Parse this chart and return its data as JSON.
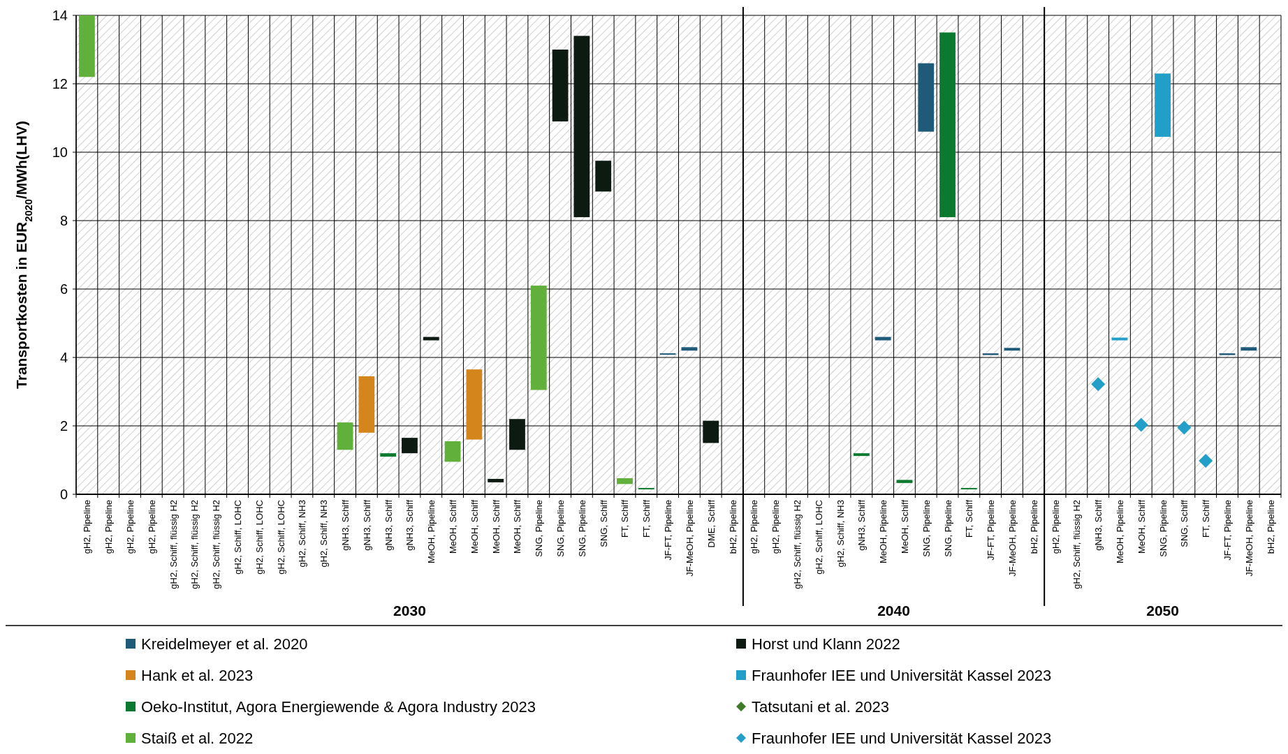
{
  "chart_data": {
    "type": "bar",
    "ylabel": "Transportkosten  in EUR$_{2020}$/MWh(LHV)",
    "categories": [
      "gH2, Pipeline",
      "gH2, Pipeline",
      "gH2, Pipeline",
      "gH2, Pipeline",
      "gH2, Schiff, flüssig H2",
      "gH2, Schiff, flüssig H2",
      "gH2, Schiff, flüssig H2",
      "gH2, Schiff, LOHC",
      "gH2, Schiff, LOHC",
      "gH2, Schiff, LOHC",
      "gH2, Schiff, NH3",
      "gH2, Schiff, NH3",
      "gNH3, Schiff",
      "gNH3, Schiff",
      "gNH3, Schiff",
      "gNH3, Schiff",
      "MeOH, Pipeline",
      "MeOH, Schiff",
      "MeOH, Schiff",
      "MeOH, Schiff",
      "MeOH, Schiff",
      "SNG, Pipeline",
      "SNG, Pipeline",
      "SNG, Pipeline",
      "SNG, Schiff",
      "FT, Schiff",
      "FT, Schiff",
      "JF-FT, Pipeline",
      "JF-MeOH, Pipeline",
      "DME, Schiff",
      "bH2, Pipeline",
      "gH2, Pipeline",
      "gH2, Pipeline",
      "gH2, Schiff, flüssig H2",
      "gH2, Schiff, LOHC",
      "gH2, Schiff, NH3",
      "gNH3, Schiff",
      "MeOH, Pipeline",
      "MeOH, Schiff",
      "SNG, Pipeline",
      "SNG, Pipeline",
      "FT, Schiff",
      "JF-FT, Pipeline",
      "JF-MeOH, Pipeline",
      "bH2, Pipeline",
      "gH2, Pipeline",
      "gH2, Schiff, flüssig H2",
      "gNH3, Schiff",
      "MeOH, Pipeline",
      "MeOH, Schiff",
      "SNG, Pipeline",
      "SNG, Schiff",
      "FT, Schiff",
      "JF-FT, Pipeline",
      "JF-MeOH, Pipeline",
      "bH2, Pipeline"
    ],
    "series": [
      {
        "name": "Kreidelmeyer et al. 2020",
        "color": "#1f5a78",
        "values": [
          null,
          null,
          null,
          null,
          null,
          null,
          null,
          null,
          null,
          null,
          null,
          null,
          null,
          null,
          null,
          null,
          null,
          null,
          null,
          null,
          null,
          null,
          null,
          null,
          null,
          null,
          null,
          0.04,
          0.1,
          null,
          null,
          null,
          null,
          null,
          null,
          null,
          null,
          0.1,
          null,
          2.0,
          null,
          null,
          0.05,
          0.08,
          null,
          null,
          null,
          null,
          null,
          null,
          null,
          null,
          null,
          0.05,
          0.1,
          null
        ],
        "base": [
          null,
          null,
          null,
          null,
          null,
          null,
          null,
          null,
          null,
          null,
          null,
          null,
          null,
          null,
          null,
          null,
          null,
          null,
          null,
          null,
          null,
          null,
          null,
          null,
          null,
          null,
          null,
          4.08,
          4.2,
          null,
          null,
          null,
          null,
          null,
          null,
          null,
          null,
          4.5,
          null,
          10.6,
          null,
          null,
          4.07,
          4.2,
          null,
          null,
          null,
          null,
          null,
          null,
          null,
          null,
          null,
          4.07,
          4.2,
          null
        ]
      },
      {
        "name": "Hank et al. 2023",
        "color": "#d4861c",
        "values": [
          null,
          null,
          null,
          null,
          null,
          null,
          null,
          null,
          null,
          null,
          null,
          null,
          null,
          1.65,
          null,
          null,
          null,
          null,
          2.05,
          null,
          null,
          null,
          null,
          null,
          null,
          null,
          null,
          null,
          null,
          null,
          null,
          null,
          null,
          null,
          null,
          null,
          null,
          null,
          null,
          null,
          null,
          null,
          null,
          null,
          null,
          null,
          null,
          null,
          null,
          null,
          null,
          null,
          null,
          null,
          null,
          null
        ],
        "base": [
          null,
          null,
          null,
          null,
          null,
          null,
          null,
          null,
          null,
          null,
          null,
          null,
          null,
          1.8,
          null,
          null,
          null,
          null,
          1.6,
          null,
          null,
          null,
          null,
          null,
          null,
          null,
          null,
          null,
          null,
          null,
          null,
          null,
          null,
          null,
          null,
          null,
          null,
          null,
          null,
          null,
          null,
          null,
          null,
          null,
          null,
          null,
          null,
          null,
          null,
          null,
          null,
          null,
          null,
          null,
          null,
          null
        ]
      },
      {
        "name": "Oeko-Institut, Agora Energiewende & Agora Industry 2023",
        "color": "#0c7a2e",
        "values": [
          null,
          null,
          null,
          null,
          null,
          null,
          null,
          null,
          null,
          null,
          null,
          null,
          null,
          null,
          0.1,
          null,
          null,
          null,
          null,
          null,
          null,
          null,
          null,
          null,
          null,
          null,
          0.03,
          null,
          null,
          null,
          null,
          null,
          null,
          null,
          null,
          null,
          0.08,
          null,
          0.09,
          null,
          5.4,
          0.03,
          null,
          null,
          null,
          null,
          null,
          null,
          null,
          null,
          null,
          null,
          null,
          null,
          null,
          null
        ],
        "base": [
          null,
          null,
          null,
          null,
          null,
          null,
          null,
          null,
          null,
          null,
          null,
          null,
          null,
          null,
          1.1,
          null,
          null,
          null,
          null,
          null,
          null,
          null,
          null,
          null,
          null,
          null,
          0.15,
          null,
          null,
          null,
          null,
          null,
          null,
          null,
          null,
          null,
          1.12,
          null,
          0.33,
          null,
          8.1,
          0.15,
          null,
          null,
          null,
          null,
          null,
          null,
          null,
          null,
          null,
          null,
          null,
          null,
          null,
          null
        ]
      },
      {
        "name": "Staiß et al. 2022",
        "color": "#62b03c",
        "values": [
          1.8,
          null,
          null,
          null,
          null,
          null,
          null,
          null,
          null,
          null,
          null,
          null,
          0.8,
          null,
          null,
          null,
          null,
          0.6,
          null,
          null,
          null,
          3.05,
          null,
          null,
          null,
          0.17,
          null,
          null,
          null,
          null,
          null,
          null,
          null,
          null,
          null,
          null,
          null,
          null,
          null,
          null,
          null,
          null,
          null,
          null,
          null,
          null,
          null,
          null,
          null,
          null,
          null,
          null,
          null,
          null,
          null,
          null
        ],
        "base": [
          12.2,
          null,
          null,
          null,
          null,
          null,
          null,
          null,
          null,
          null,
          null,
          null,
          1.3,
          null,
          null,
          null,
          null,
          0.95,
          null,
          null,
          null,
          3.05,
          null,
          null,
          null,
          0.3,
          null,
          null,
          null,
          null,
          null,
          null,
          null,
          null,
          null,
          null,
          null,
          null,
          null,
          null,
          null,
          null,
          null,
          null,
          null,
          null,
          null,
          null,
          null,
          null,
          null,
          null,
          null,
          null,
          null,
          null
        ]
      },
      {
        "name": "Horst und Klann 2022",
        "color": "#0d1a12",
        "values": [
          null,
          null,
          null,
          null,
          null,
          null,
          null,
          null,
          null,
          null,
          null,
          null,
          null,
          null,
          null,
          0.45,
          0.1,
          null,
          null,
          0.1,
          0.9,
          null,
          2.1,
          5.3,
          0.9,
          null,
          null,
          null,
          null,
          0.65,
          null,
          null,
          null,
          null,
          null,
          null,
          null,
          null,
          null,
          null,
          null,
          null,
          null,
          null,
          null,
          null,
          null,
          null,
          null,
          null,
          null,
          null,
          null,
          null,
          null,
          null
        ],
        "base": [
          null,
          null,
          null,
          null,
          null,
          null,
          null,
          null,
          null,
          null,
          null,
          null,
          null,
          null,
          null,
          1.2,
          4.5,
          null,
          null,
          0.35,
          1.3,
          null,
          10.9,
          8.1,
          8.85,
          null,
          null,
          null,
          null,
          1.5,
          null,
          null,
          null,
          null,
          null,
          null,
          null,
          null,
          null,
          null,
          null,
          null,
          null,
          null,
          null,
          null,
          null,
          null,
          null,
          null,
          null,
          null,
          null,
          null,
          null,
          null
        ]
      },
      {
        "name": "Fraunhofer IEE und Universität Kassel 2023",
        "color": "#229fc8",
        "values": [
          null,
          null,
          null,
          null,
          null,
          null,
          null,
          null,
          null,
          null,
          null,
          null,
          null,
          null,
          null,
          null,
          null,
          null,
          null,
          null,
          null,
          null,
          null,
          null,
          null,
          null,
          null,
          null,
          null,
          null,
          null,
          null,
          null,
          null,
          null,
          null,
          null,
          null,
          null,
          null,
          null,
          null,
          null,
          null,
          null,
          null,
          null,
          null,
          0.08,
          null,
          1.85,
          null,
          null,
          null,
          null,
          null
        ],
        "base": [
          null,
          null,
          null,
          null,
          null,
          null,
          null,
          null,
          null,
          null,
          null,
          null,
          null,
          null,
          null,
          null,
          null,
          null,
          null,
          null,
          null,
          null,
          null,
          null,
          null,
          null,
          null,
          null,
          null,
          null,
          null,
          null,
          null,
          null,
          null,
          null,
          null,
          null,
          null,
          null,
          null,
          null,
          null,
          null,
          null,
          null,
          null,
          null,
          4.5,
          null,
          10.45,
          null,
          null,
          null,
          null,
          null
        ]
      },
      {
        "name": "Tatsutani et al. 2023",
        "type": "scatter",
        "marker": "diamond",
        "color": "#3f7a28",
        "values": [
          null,
          null,
          null,
          null,
          null,
          null,
          null,
          null,
          null,
          null,
          null,
          null,
          null,
          null,
          null,
          null,
          null,
          null,
          null,
          null,
          null,
          null,
          null,
          null,
          null,
          null,
          null,
          null,
          null,
          null,
          null,
          null,
          null,
          null,
          null,
          null,
          null,
          null,
          null,
          null,
          null,
          null,
          null,
          null,
          null,
          null,
          null,
          null,
          null,
          null,
          null,
          null,
          null,
          null,
          null,
          null
        ]
      },
      {
        "name": "Fraunhofer IEE und Universität Kassel 2023",
        "type": "scatter",
        "marker": "diamond",
        "color": "#229fc8",
        "values": [
          null,
          null,
          null,
          null,
          null,
          null,
          null,
          null,
          null,
          null,
          null,
          null,
          null,
          null,
          null,
          null,
          null,
          null,
          null,
          null,
          null,
          null,
          null,
          null,
          null,
          null,
          null,
          null,
          null,
          null,
          null,
          null,
          null,
          null,
          null,
          null,
          null,
          null,
          null,
          null,
          null,
          null,
          null,
          null,
          null,
          null,
          null,
          3.22,
          null,
          2.03,
          null,
          1.95,
          0.98,
          null,
          null,
          null
        ]
      }
    ],
    "ylim": [
      0,
      14
    ],
    "yticks": [
      0,
      2,
      4,
      6,
      8,
      10,
      12,
      14
    ],
    "annotations": [
      "2030",
      "2040",
      "2050"
    ],
    "grid": true,
    "legend": "bottom"
  }
}
